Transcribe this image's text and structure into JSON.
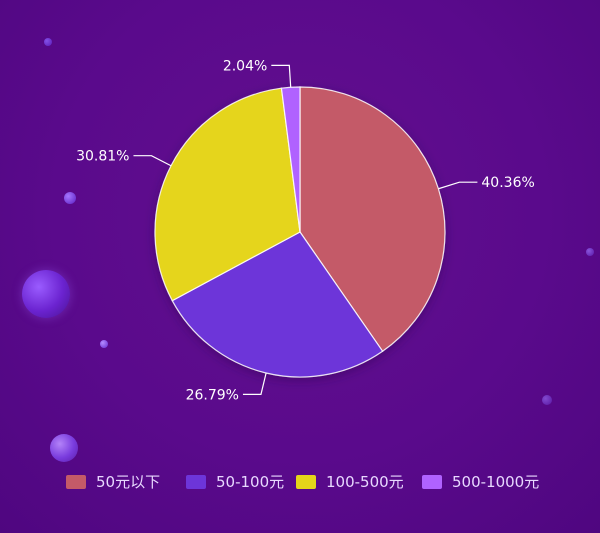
{
  "chart_data": {
    "type": "pie",
    "title": "",
    "slices": [
      {
        "label": "50元以下",
        "value": 40.36,
        "value_label": "40.36%",
        "color": "#c45a68"
      },
      {
        "label": "50-100元",
        "value": 26.79,
        "value_label": "26.79%",
        "color": "#6d35d9"
      },
      {
        "label": "100-500元",
        "value": 30.81,
        "value_label": "30.81%",
        "color": "#e5d51a"
      },
      {
        "label": "500-1000元",
        "value": 2.04,
        "value_label": "2.04%",
        "color": "#b062ff"
      }
    ],
    "legend_position": "bottom-center"
  },
  "background_color": "#5a0a8c",
  "text_color": "#ffffff",
  "legend_text_color": "#e8d8ff",
  "leader_line_color": "#ffffff"
}
